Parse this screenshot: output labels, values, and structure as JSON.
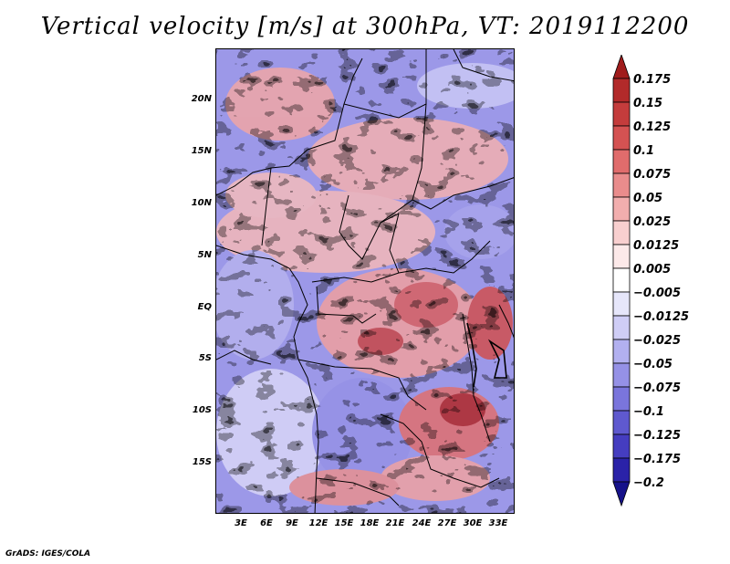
{
  "title": "Vertical velocity [m/s] at 300hPa, VT: 2019112200",
  "credit": "GrADS: IGES/COLA",
  "map": {
    "lat_ticks": [
      "20N",
      "15N",
      "10N",
      "5N",
      "EQ",
      "5S",
      "10S",
      "15S"
    ],
    "lon_ticks": [
      "3E",
      "6E",
      "9E",
      "12E",
      "15E",
      "18E",
      "21E",
      "24E",
      "27E",
      "30E",
      "33E"
    ]
  },
  "colorbar": {
    "labels": [
      "0.175",
      "0.15",
      "0.125",
      "0.1",
      "0.075",
      "0.05",
      "0.025",
      "0.0125",
      "0.005",
      "−0.005",
      "−0.0125",
      "−0.025",
      "−0.05",
      "−0.075",
      "−0.1",
      "−0.125",
      "−0.175",
      "−0.2"
    ],
    "colors": [
      "#a01c1c",
      "#b22a2a",
      "#c43c3c",
      "#d45252",
      "#e06c6c",
      "#e98c8c",
      "#f2aeae",
      "#f8cfcf",
      "#fce9e9",
      "#ffffff",
      "#e6e6fa",
      "#cfcdf6",
      "#b2b0f0",
      "#9591e6",
      "#7a75dc",
      "#5f59cf",
      "#453dc0",
      "#2a22a8",
      "#16128a"
    ]
  }
}
